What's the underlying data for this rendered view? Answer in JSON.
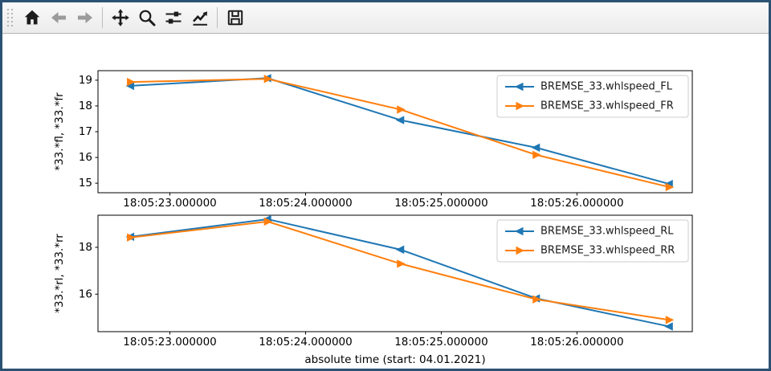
{
  "window": {
    "type": "matplotlib-figure-window",
    "border_color": "#2b5273",
    "background_color": "#ffffff"
  },
  "toolbar": {
    "background_top": "#f9f9f9",
    "background_bottom": "#ececec",
    "icon_color": "#1c1c1c",
    "disabled_icon_color": "#9b9b9b",
    "icons": [
      {
        "name": "home",
        "enabled": true
      },
      {
        "name": "back",
        "enabled": false
      },
      {
        "name": "forward",
        "enabled": false
      },
      {
        "name": "pan",
        "enabled": true
      },
      {
        "name": "zoom-to-rect",
        "enabled": true
      },
      {
        "name": "configure-subplots",
        "enabled": true
      },
      {
        "name": "edit-parameters",
        "enabled": true
      },
      {
        "name": "save",
        "enabled": true
      }
    ]
  },
  "chart_data": [
    {
      "type": "line",
      "title": "",
      "xlabel": "",
      "ylabel": "*33.*fl, *33.*fr",
      "x_unit": "seconds after 18:05:00",
      "x": [
        22.71,
        23.72,
        24.7,
        25.7,
        26.68
      ],
      "xlim": [
        22.47,
        26.85
      ],
      "ylim": [
        14.63,
        19.37
      ],
      "xticks": [
        {
          "value": 23,
          "label": "18:05:23.000000"
        },
        {
          "value": 24,
          "label": "18:05:24.000000"
        },
        {
          "value": 25,
          "label": "18:05:25.000000"
        },
        {
          "value": 26,
          "label": "18:05:26.000000"
        }
      ],
      "yticks": [
        15,
        16,
        17,
        18,
        19
      ],
      "grid": false,
      "legend_position": "upper right",
      "series": [
        {
          "name": "BREMSE_33.whlspeed_FL",
          "color": "#1f77b4",
          "marker": "left",
          "values": [
            18.78,
            19.08,
            17.45,
            16.38,
            14.97
          ]
        },
        {
          "name": "BREMSE_33.whlspeed_FR",
          "color": "#ff7f0e",
          "marker": "right",
          "values": [
            18.93,
            19.05,
            17.86,
            16.1,
            14.85
          ]
        }
      ]
    },
    {
      "type": "line",
      "title": "",
      "xlabel": "absolute time (start: 04.01.2021)",
      "ylabel": "*33.*rl, *33.*rr",
      "x_unit": "seconds after 18:05:00",
      "x": [
        22.71,
        23.72,
        24.7,
        25.7,
        26.68
      ],
      "xlim": [
        22.47,
        26.85
      ],
      "ylim": [
        14.4,
        19.37
      ],
      "xticks": [
        {
          "value": 23,
          "label": "18:05:23.000000"
        },
        {
          "value": 24,
          "label": "18:05:24.000000"
        },
        {
          "value": 25,
          "label": "18:05:25.000000"
        },
        {
          "value": 26,
          "label": "18:05:26.000000"
        }
      ],
      "yticks": [
        16,
        18
      ],
      "grid": false,
      "legend_position": "upper right",
      "series": [
        {
          "name": "BREMSE_33.whlspeed_RL",
          "color": "#1f77b4",
          "marker": "left",
          "values": [
            18.45,
            19.2,
            17.9,
            15.82,
            14.62
          ]
        },
        {
          "name": "BREMSE_33.whlspeed_RR",
          "color": "#ff7f0e",
          "marker": "right",
          "values": [
            18.42,
            19.1,
            17.3,
            15.78,
            14.9
          ]
        }
      ]
    }
  ]
}
